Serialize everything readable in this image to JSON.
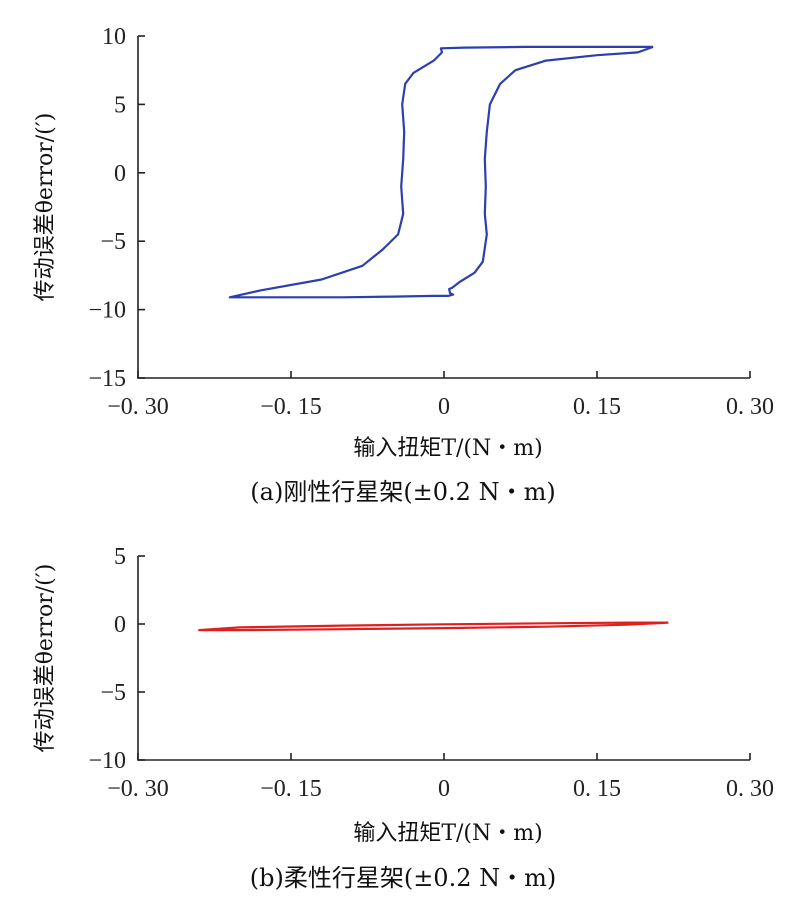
{
  "chart_data": [
    {
      "type": "line",
      "caption": "(a)刚性行星架(±0.2 N・m)",
      "xlabel": "输入扭矩T/(N・m)",
      "ylabel": "传动误差θerror/(′)",
      "xlim": [
        -0.3,
        0.3
      ],
      "ylim": [
        -15,
        10
      ],
      "xticks": [
        -0.3,
        -0.15,
        0,
        0.15,
        0.3
      ],
      "xtick_labels": [
        "−0. 30",
        "−0. 15",
        "0",
        "0. 15",
        "0. 30"
      ],
      "yticks": [
        10,
        5,
        0,
        -5,
        -10,
        -15
      ],
      "ytick_labels": [
        "10",
        "5",
        "0",
        "−5",
        "−10",
        "−15"
      ],
      "grid": false,
      "series": [
        {
          "color": "#2b3fae",
          "x": [
            0.205,
            0.19,
            0.15,
            0.1,
            0.07,
            0.055,
            0.045,
            0.042,
            0.04,
            0.041,
            0.04,
            0.042,
            0.04,
            0.038,
            0.03,
            0.015,
            0.008,
            0.005,
            0.006,
            0.009,
            0.004,
            -0.01,
            -0.05,
            -0.1,
            -0.15,
            -0.2,
            -0.21,
            -0.18,
            -0.12,
            -0.08,
            -0.06,
            -0.045,
            -0.04,
            -0.042,
            -0.04,
            -0.039,
            -0.041,
            -0.038,
            -0.03,
            -0.01,
            -0.002,
            -0.003,
            0.02,
            0.08,
            0.15,
            0.205
          ],
          "y": [
            9.2,
            8.8,
            8.6,
            8.2,
            7.5,
            6.5,
            5.0,
            3.0,
            1.0,
            -1.0,
            -3.0,
            -4.5,
            -5.5,
            -6.5,
            -7.3,
            -8.0,
            -8.4,
            -8.5,
            -8.8,
            -8.9,
            -9.0,
            -9.0,
            -9.05,
            -9.1,
            -9.1,
            -9.1,
            -9.1,
            -8.6,
            -7.8,
            -6.8,
            -5.6,
            -4.5,
            -3.0,
            -1.0,
            1.0,
            3.0,
            5.0,
            6.5,
            7.3,
            8.2,
            8.8,
            9.1,
            9.15,
            9.2,
            9.2,
            9.2
          ]
        }
      ]
    },
    {
      "type": "line",
      "caption": "(b)柔性行星架(±0.2 N・m)",
      "xlabel": "输入扭矩T/(N・m)",
      "ylabel": "传动误差θerror/(′)",
      "xlim": [
        -0.3,
        0.3
      ],
      "ylim": [
        -10,
        5
      ],
      "xticks": [
        -0.3,
        -0.15,
        0,
        0.15,
        0.3
      ],
      "xtick_labels": [
        "−0. 30",
        "−0. 15",
        "0",
        "0. 15",
        "0. 30"
      ],
      "yticks": [
        5,
        0,
        -5,
        -10
      ],
      "ytick_labels": [
        "5",
        "0",
        "−5",
        "−10"
      ],
      "grid": false,
      "series": [
        {
          "color": "#e02020",
          "x": [
            0.22,
            0.18,
            0.1,
            0.0,
            -0.1,
            -0.2,
            -0.24,
            -0.2,
            -0.1,
            0.0,
            0.1,
            0.18,
            0.22
          ],
          "y": [
            0.1,
            -0.05,
            -0.2,
            -0.3,
            -0.38,
            -0.45,
            -0.45,
            -0.25,
            -0.12,
            -0.02,
            0.05,
            0.1,
            0.1
          ]
        }
      ]
    }
  ]
}
